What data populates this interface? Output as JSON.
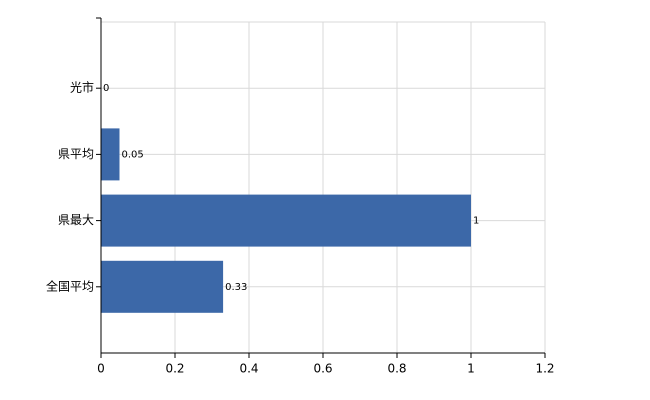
{
  "chart_data": {
    "type": "bar",
    "orientation": "horizontal",
    "categories": [
      "光市",
      "県平均",
      "県最大",
      "全国平均"
    ],
    "values": [
      0,
      0.05,
      1,
      0.33
    ],
    "color": "#3c68a8",
    "xlim": [
      0,
      1.2
    ],
    "xticks": [
      0,
      0.2,
      0.4,
      0.6,
      0.8,
      1,
      1.2
    ],
    "grid": true
  }
}
